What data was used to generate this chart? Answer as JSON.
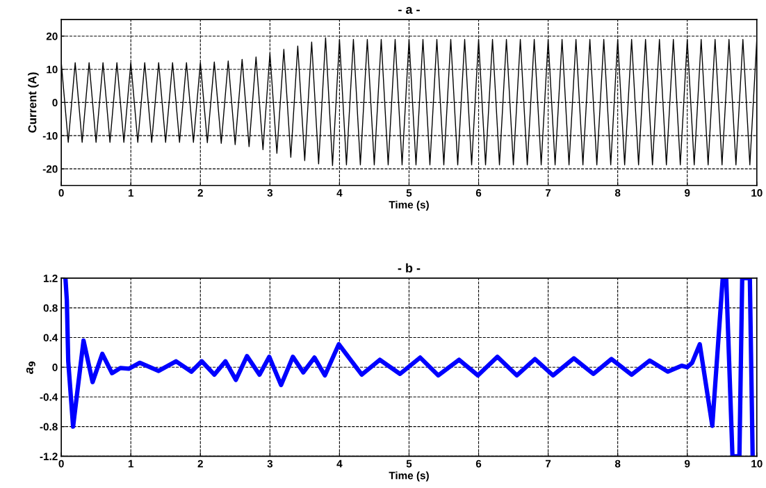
{
  "chart_data": [
    {
      "type": "line",
      "title": "- a -",
      "xlabel": "Time (s)",
      "ylabel": "Current (A)",
      "xlim": [
        0,
        10
      ],
      "xticks": [
        0,
        1,
        2,
        3,
        4,
        5,
        6,
        7,
        8,
        9,
        10
      ],
      "ylim": [
        -25,
        25
      ],
      "yticks": [
        -20,
        -10,
        0,
        10,
        20
      ],
      "grid": true,
      "series": [
        {
          "color": "#000000",
          "x": [
            0,
            0.1,
            0.2,
            0.3,
            0.4,
            0.5,
            0.6,
            0.7,
            0.8,
            0.9,
            1.0,
            1.1,
            1.2,
            1.3,
            1.4,
            1.5,
            1.6,
            1.7,
            1.8,
            1.9,
            2.0,
            2.1,
            2.2,
            2.3,
            2.4,
            2.5,
            2.6,
            2.7,
            2.8,
            2.9,
            3.0,
            3.1,
            3.2,
            3.3,
            3.4,
            3.5,
            3.6,
            3.7,
            3.8,
            3.9,
            4.0,
            4.1,
            4.2,
            4.3,
            4.4,
            4.5,
            4.6,
            4.7,
            4.8,
            4.9,
            5.0,
            5.1,
            5.2,
            5.3,
            5.4,
            5.5,
            5.6,
            5.7,
            5.8,
            5.9,
            6.0,
            6.1,
            6.2,
            6.3,
            6.4,
            6.5,
            6.6,
            6.7,
            6.8,
            6.9,
            7.0,
            7.1,
            7.2,
            7.3,
            7.4,
            7.5,
            7.6,
            7.7,
            7.8,
            7.9,
            8.0,
            8.1,
            8.2,
            8.3,
            8.4,
            8.5,
            8.6,
            8.7,
            8.8,
            8.9,
            9.0,
            9.1,
            9.2,
            9.3,
            9.4,
            9.5,
            9.6,
            9.7,
            9.8,
            9.9,
            10.0
          ],
          "values": [
            12,
            -12,
            12,
            -12,
            12,
            -12,
            12,
            -12,
            12,
            -12,
            12,
            -12,
            12,
            -12,
            12,
            -12,
            12,
            -12,
            12,
            -12,
            12,
            -12.1,
            12.2,
            -12.3,
            12.5,
            -12.7,
            13,
            -13.3,
            13.7,
            -14.2,
            14.8,
            -15.3,
            16,
            -16.5,
            17,
            -17.5,
            18.2,
            -18.5,
            19.5,
            -19,
            19,
            -18.8,
            19,
            -18.8,
            19,
            -18.8,
            19,
            -18.8,
            19,
            -18.8,
            19,
            -18.8,
            19,
            -18.8,
            19,
            -18.8,
            19,
            -18.8,
            19,
            -18.8,
            19,
            -18.8,
            19,
            -18.8,
            19,
            -18.8,
            19,
            -18.8,
            19,
            -18.8,
            19,
            -18.8,
            19,
            -18.8,
            19,
            -18.8,
            19,
            -18.8,
            19,
            -18.8,
            19,
            -18.8,
            19,
            -18.8,
            19,
            -18.8,
            19,
            -18.8,
            19,
            -18.8,
            19,
            -18.8,
            19,
            -18.8,
            19,
            -18.8,
            19,
            -18.8,
            19,
            -18.8,
            19
          ]
        }
      ]
    },
    {
      "type": "line",
      "title": "- b -",
      "xlabel": "Time (s)",
      "ylabel": "a$_{9}$",
      "xlim": [
        0,
        10
      ],
      "xticks": [
        0,
        1,
        2,
        3,
        4,
        5,
        6,
        7,
        8,
        9,
        10
      ],
      "ylim": [
        -1.2,
        1.2
      ],
      "yticks": [
        -1.2,
        -0.8,
        -0.4,
        0,
        0.4,
        0.8,
        1.2
      ],
      "grid": true,
      "series": [
        {
          "color": "#0000ff",
          "x": [
            0.06,
            0.08,
            0.1,
            0.17,
            0.32,
            0.45,
            0.59,
            0.73,
            0.85,
            0.97,
            1.13,
            1.4,
            1.65,
            1.87,
            2.02,
            2.2,
            2.36,
            2.51,
            2.67,
            2.85,
            2.99,
            3.16,
            3.33,
            3.48,
            3.64,
            3.79,
            3.99,
            4.32,
            4.58,
            4.87,
            5.16,
            5.42,
            5.72,
            5.99,
            6.27,
            6.55,
            6.81,
            7.07,
            7.37,
            7.65,
            7.91,
            8.2,
            8.46,
            8.72,
            8.92,
            9.0,
            9.07,
            9.18,
            9.36,
            9.51,
            9.56,
            9.65,
            9.75,
            9.79,
            9.9,
            9.94
          ],
          "values": [
            1.2,
            0.9,
            0.08,
            -0.8,
            0.36,
            -0.2,
            0.18,
            -0.08,
            -0.01,
            -0.02,
            0.06,
            -0.05,
            0.08,
            -0.06,
            0.08,
            -0.1,
            0.08,
            -0.17,
            0.15,
            -0.1,
            0.14,
            -0.24,
            0.14,
            -0.07,
            0.13,
            -0.11,
            0.31,
            -0.1,
            0.1,
            -0.09,
            0.13,
            -0.11,
            0.1,
            -0.11,
            0.14,
            -0.11,
            0.11,
            -0.11,
            0.12,
            -0.09,
            0.11,
            -0.1,
            0.09,
            -0.06,
            0.02,
            0,
            0.06,
            0.31,
            -0.79,
            1.2,
            1.2,
            -1.2,
            -1.2,
            1.2,
            1.2,
            -1.2
          ]
        }
      ]
    }
  ]
}
